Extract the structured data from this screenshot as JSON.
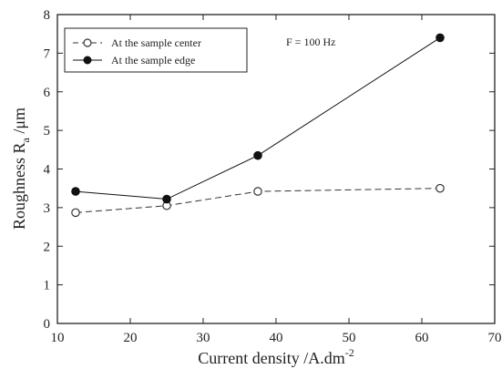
{
  "chart_data": {
    "type": "line",
    "x": [
      12.5,
      25,
      37.5,
      62.5
    ],
    "series": [
      {
        "name": "At the sample center",
        "values": [
          2.87,
          3.05,
          3.42,
          3.5
        ],
        "style": "dashed",
        "marker": "open-circle",
        "color": "#333333"
      },
      {
        "name": "At the sample edge",
        "values": [
          3.42,
          3.22,
          4.35,
          7.4
        ],
        "style": "solid",
        "marker": "filled-circle",
        "color": "#111111"
      }
    ],
    "xlabel_text": "Current density /A.dm",
    "xlabel_sup": "-2",
    "ylabel_text": "Roughness R",
    "ylabel_sub": "a",
    "ylabel_unit": " /μm",
    "annotation": "F = 100 Hz",
    "xlim": [
      10,
      70
    ],
    "ylim": [
      0,
      8
    ],
    "xticks": [
      10,
      20,
      30,
      40,
      50,
      60,
      70
    ],
    "yticks": [
      0,
      1,
      2,
      3,
      4,
      5,
      6,
      7,
      8
    ],
    "legend_position": "top-left",
    "grid": false
  }
}
